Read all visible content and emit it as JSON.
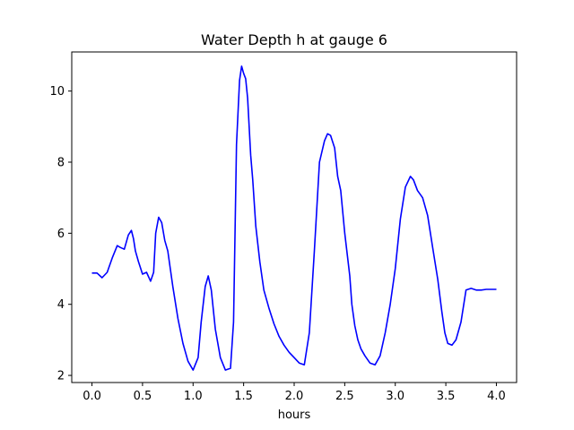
{
  "chart_data": {
    "type": "line",
    "title": "Water Depth h at gauge 6",
    "xlabel": "hours",
    "ylabel": "",
    "xlim": [
      -0.2,
      4.2
    ],
    "ylim": [
      1.8,
      11.1
    ],
    "xticks": [
      0.0,
      0.5,
      1.0,
      1.5,
      2.0,
      2.5,
      3.0,
      3.5,
      4.0
    ],
    "xtick_labels": [
      "0.0",
      "0.5",
      "1.0",
      "1.5",
      "2.0",
      "2.5",
      "3.0",
      "3.5",
      "4.0"
    ],
    "yticks": [
      2,
      4,
      6,
      8,
      10
    ],
    "ytick_labels": [
      "2",
      "4",
      "6",
      "8",
      "10"
    ],
    "grid": false,
    "series": [
      {
        "color": "#0000ff",
        "x": [
          0.0,
          0.05,
          0.1,
          0.15,
          0.2,
          0.25,
          0.28,
          0.32,
          0.36,
          0.39,
          0.41,
          0.43,
          0.46,
          0.5,
          0.54,
          0.58,
          0.61,
          0.63,
          0.66,
          0.69,
          0.72,
          0.75,
          0.8,
          0.85,
          0.9,
          0.95,
          1.0,
          1.05,
          1.08,
          1.12,
          1.15,
          1.18,
          1.22,
          1.27,
          1.32,
          1.37,
          1.4,
          1.43,
          1.46,
          1.48,
          1.5,
          1.52,
          1.54,
          1.57,
          1.59,
          1.62,
          1.66,
          1.7,
          1.75,
          1.8,
          1.85,
          1.9,
          1.95,
          2.0,
          2.05,
          2.1,
          2.15,
          2.2,
          2.25,
          2.3,
          2.33,
          2.36,
          2.4,
          2.43,
          2.46,
          2.5,
          2.55,
          2.57,
          2.6,
          2.63,
          2.66,
          2.7,
          2.75,
          2.8,
          2.85,
          2.9,
          2.95,
          3.0,
          3.05,
          3.1,
          3.15,
          3.18,
          3.22,
          3.27,
          3.32,
          3.37,
          3.42,
          3.46,
          3.49,
          3.52,
          3.56,
          3.6,
          3.65,
          3.7,
          3.75,
          3.8,
          3.85,
          3.9,
          3.95,
          3.98,
          4.0
        ],
        "y": [
          4.88,
          4.88,
          4.75,
          4.9,
          5.3,
          5.65,
          5.6,
          5.55,
          5.95,
          6.08,
          5.85,
          5.5,
          5.2,
          4.85,
          4.9,
          4.65,
          4.9,
          6.0,
          6.45,
          6.3,
          5.8,
          5.5,
          4.5,
          3.6,
          2.9,
          2.4,
          2.15,
          2.5,
          3.5,
          4.5,
          4.8,
          4.4,
          3.3,
          2.5,
          2.15,
          2.2,
          3.5,
          8.5,
          10.3,
          10.7,
          10.5,
          10.35,
          9.8,
          8.2,
          7.5,
          6.2,
          5.2,
          4.4,
          3.9,
          3.45,
          3.1,
          2.85,
          2.65,
          2.5,
          2.35,
          2.3,
          3.2,
          5.5,
          8.0,
          8.6,
          8.8,
          8.75,
          8.4,
          7.6,
          7.2,
          6.0,
          4.8,
          4.0,
          3.4,
          3.0,
          2.75,
          2.55,
          2.35,
          2.3,
          2.55,
          3.2,
          4.0,
          5.0,
          6.4,
          7.3,
          7.6,
          7.5,
          7.2,
          7.0,
          6.5,
          5.6,
          4.7,
          3.8,
          3.2,
          2.9,
          2.85,
          3.0,
          3.5,
          4.4,
          4.45,
          4.4,
          4.4,
          4.42,
          4.42,
          4.42,
          4.42
        ]
      }
    ]
  }
}
